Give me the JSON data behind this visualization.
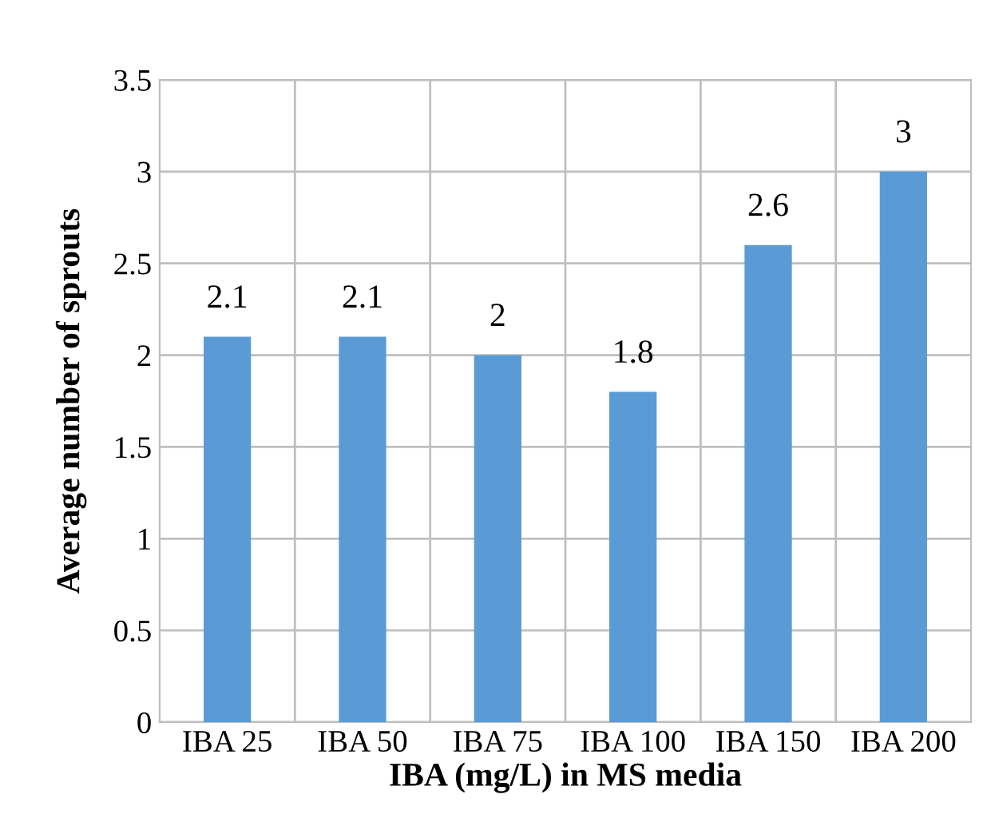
{
  "chart_data": {
    "type": "bar",
    "xlabel": "IBA (mg/L) in MS media",
    "ylabel": "Average number of sprouts",
    "categories": [
      "IBA 25",
      "IBA 50",
      "IBA 75",
      "IBA 100",
      "IBA 150",
      "IBA 200"
    ],
    "values": [
      2.1,
      2.1,
      2,
      1.8,
      2.6,
      3
    ],
    "color": "#5b9bd5",
    "ylim": [
      0,
      3.5
    ],
    "yticks": [
      0,
      0.5,
      1,
      1.5,
      2,
      2.5,
      3,
      3.5
    ],
    "grid": true,
    "data_labels": true
  }
}
